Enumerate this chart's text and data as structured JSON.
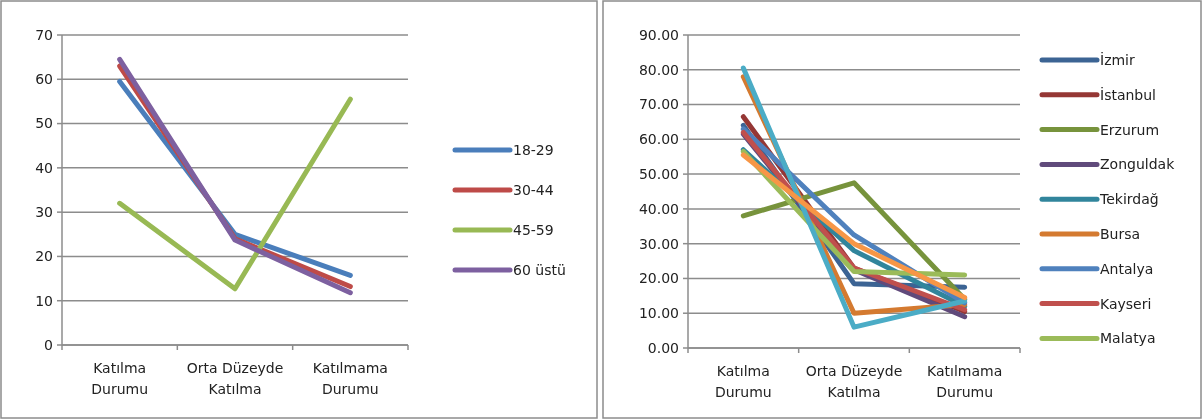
{
  "chart_data": [
    {
      "type": "line",
      "categories": [
        "Katılma Durumu",
        "Orta Düzeyde Katılma",
        "Katılmama Durumu"
      ],
      "ylim": [
        0,
        70
      ],
      "yticks": [
        0,
        10,
        20,
        30,
        40,
        50,
        60,
        70
      ],
      "grid": "y",
      "legend": "right",
      "marker": "none",
      "line_style": "solid",
      "series": [
        {
          "name": "18-29",
          "color": "#4a7ebb",
          "values": [
            59.5,
            25,
            15.7
          ]
        },
        {
          "name": "30-44",
          "color": "#be4b48",
          "values": [
            63,
            24,
            13.2
          ]
        },
        {
          "name": "45-59",
          "color": "#98b954",
          "values": [
            32,
            12.7,
            55.5
          ]
        },
        {
          "name": "60 üstü",
          "color": "#7d60a0",
          "values": [
            64.5,
            23.7,
            11.8
          ]
        }
      ]
    },
    {
      "type": "line",
      "categories": [
        "Katılma Durumu",
        "Orta Düzeyde Katılma",
        "Katılmama Durumu"
      ],
      "ylim": [
        0,
        90
      ],
      "yticks": [
        {
          "value": 0,
          "label": "0.00"
        },
        {
          "value": 10,
          "label": "10.00"
        },
        {
          "value": 20,
          "label": "20.00"
        },
        {
          "value": 30,
          "label": "30.00"
        },
        {
          "value": 40,
          "label": "40.00"
        },
        {
          "value": 50,
          "label": "50.00"
        },
        {
          "value": 60,
          "label": "60.00"
        },
        {
          "value": 70,
          "label": "70.00"
        },
        {
          "value": 80,
          "label": "80.00"
        },
        {
          "value": 90,
          "label": "90.00"
        }
      ],
      "grid": "y",
      "legend": "right",
      "marker": "none",
      "line_style": "solid",
      "series": [
        {
          "name": "İzmir",
          "color": "#3c6494",
          "values": [
            64,
            18.5,
            17.5
          ]
        },
        {
          "name": "İstanbul",
          "color": "#953735",
          "values": [
            66.5,
            23,
            10.5
          ]
        },
        {
          "name": "Erzurum",
          "color": "#77933c",
          "values": [
            38,
            47.5,
            14
          ]
        },
        {
          "name": "Zonguldak",
          "color": "#604a7b",
          "values": [
            61.5,
            22.5,
            9
          ]
        },
        {
          "name": "Tekirdağ",
          "color": "#31859c",
          "values": [
            57,
            28,
            12
          ]
        },
        {
          "name": "Bursa",
          "color": "#d47a30",
          "values": [
            78,
            10,
            12.5
          ]
        },
        {
          "name": "Antalya",
          "color": "#4f81bd",
          "values": [
            63,
            32.5,
            13
          ]
        },
        {
          "name": "Kayseri",
          "color": "#c0504d",
          "values": [
            62,
            23,
            11
          ]
        },
        {
          "name": "Malatya",
          "color": "#9bbb59",
          "values": [
            56.5,
            22,
            21
          ]
        },
        {
          "color": "#4bacc6",
          "values": [
            80.5,
            6,
            13.5
          ]
        },
        {
          "color": "#f79646",
          "values": [
            55.5,
            30,
            14.5
          ]
        }
      ]
    }
  ]
}
